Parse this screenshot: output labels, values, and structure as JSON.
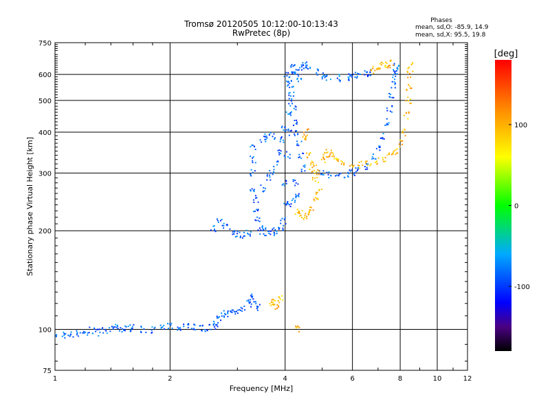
{
  "chart_data": {
    "type": "scatter",
    "title": "Tromsø 20120505 10:12:00-10:13:43",
    "subtitle": "RwPretec (8p)",
    "xlabel": "Frequency [MHz]",
    "ylabel": "Stationary phase Virtual Height [km]",
    "xscale": "log",
    "yscale": "log",
    "xlim": [
      1,
      12
    ],
    "ylim": [
      75,
      750
    ],
    "grid": true,
    "x_ticks": [
      1,
      2,
      4,
      6,
      8,
      10,
      12
    ],
    "y_ticks": [
      75,
      100,
      200,
      300,
      400,
      500,
      600,
      750
    ],
    "stats": {
      "heading": "Phases",
      "line1": "mean, sd,O: -85.9, 14.9",
      "line2": "mean, sd,X:  95.5, 19.8"
    },
    "colorbar": {
      "label": "[deg]",
      "ticks": [
        "100",
        "0",
        "-100"
      ],
      "range": [
        -180,
        180
      ]
    },
    "series": [
      {
        "mode": "O",
        "phase_mean": -85.9,
        "points": [
          [
            1.0,
            95
          ],
          [
            1.05,
            96
          ],
          [
            1.1,
            97
          ],
          [
            1.15,
            97
          ],
          [
            1.2,
            98
          ],
          [
            1.25,
            99
          ],
          [
            1.3,
            98
          ],
          [
            1.35,
            99
          ],
          [
            1.4,
            100
          ],
          [
            1.45,
            101
          ],
          [
            1.5,
            100
          ],
          [
            1.55,
            101
          ],
          [
            1.6,
            101
          ],
          [
            1.7,
            100
          ],
          [
            1.8,
            100
          ],
          [
            1.9,
            101
          ],
          [
            2.0,
            102
          ],
          [
            2.1,
            102
          ],
          [
            2.2,
            103
          ],
          [
            2.3,
            102
          ],
          [
            2.4,
            101
          ],
          [
            2.5,
            101
          ],
          [
            2.6,
            102
          ],
          [
            2.65,
            104
          ],
          [
            2.7,
            107
          ],
          [
            2.75,
            110
          ],
          [
            2.8,
            112
          ],
          [
            2.9,
            113
          ],
          [
            3.0,
            114
          ],
          [
            3.1,
            116
          ],
          [
            3.2,
            120
          ],
          [
            3.25,
            125
          ],
          [
            3.3,
            121
          ],
          [
            3.4,
            117
          ],
          [
            2.6,
            203
          ],
          [
            2.7,
            212
          ],
          [
            2.8,
            206
          ],
          [
            2.9,
            199
          ],
          [
            3.0,
            196
          ],
          [
            3.1,
            195
          ],
          [
            3.2,
            196
          ],
          [
            3.3,
            360
          ],
          [
            3.3,
            330
          ],
          [
            3.3,
            300
          ],
          [
            3.3,
            270
          ],
          [
            3.35,
            250
          ],
          [
            3.35,
            230
          ],
          [
            3.4,
            215
          ],
          [
            3.45,
            205
          ],
          [
            3.5,
            200
          ],
          [
            3.6,
            198
          ],
          [
            3.7,
            198
          ],
          [
            3.8,
            200
          ],
          [
            3.9,
            205
          ],
          [
            3.95,
            215
          ],
          [
            4.0,
            240
          ],
          [
            4.0,
            280
          ],
          [
            4.05,
            340
          ],
          [
            4.1,
            400
          ],
          [
            4.1,
            450
          ],
          [
            4.15,
            500
          ],
          [
            4.15,
            560
          ],
          [
            4.2,
            610
          ],
          [
            4.2,
            640
          ],
          [
            3.5,
            270
          ],
          [
            3.6,
            290
          ],
          [
            3.7,
            300
          ],
          [
            3.8,
            320
          ],
          [
            3.85,
            350
          ],
          [
            3.9,
            380
          ],
          [
            3.95,
            410
          ],
          [
            3.5,
            380
          ],
          [
            3.6,
            390
          ],
          [
            3.7,
            390
          ],
          [
            4.05,
            600
          ],
          [
            4.1,
            560
          ],
          [
            4.15,
            520
          ],
          [
            4.2,
            470
          ],
          [
            4.25,
            430
          ],
          [
            4.3,
            400
          ],
          [
            4.35,
            370
          ],
          [
            4.4,
            340
          ],
          [
            4.45,
            310
          ],
          [
            4.25,
            280
          ],
          [
            4.3,
            260
          ],
          [
            4.2,
            250
          ],
          [
            4.1,
            240
          ],
          [
            4.3,
            610
          ],
          [
            4.35,
            580
          ],
          [
            4.4,
            630
          ],
          [
            4.5,
            640
          ],
          [
            4.6,
            630
          ],
          [
            4.8,
            610
          ],
          [
            5.0,
            595
          ],
          [
            5.2,
            590
          ],
          [
            5.5,
            585
          ],
          [
            5.8,
            590
          ],
          [
            6.0,
            592
          ],
          [
            6.2,
            595
          ],
          [
            6.5,
            605
          ],
          [
            6.7,
            610
          ],
          [
            5.0,
            300
          ],
          [
            5.2,
            295
          ],
          [
            5.5,
            293
          ],
          [
            5.8,
            295
          ],
          [
            6.0,
            300
          ],
          [
            6.2,
            305
          ],
          [
            6.5,
            315
          ],
          [
            6.8,
            335
          ],
          [
            7.0,
            360
          ],
          [
            7.2,
            390
          ],
          [
            7.4,
            430
          ],
          [
            7.5,
            470
          ],
          [
            7.6,
            520
          ],
          [
            7.7,
            560
          ],
          [
            7.75,
            590
          ],
          [
            7.8,
            610
          ],
          [
            7.8,
            640
          ]
        ]
      },
      {
        "mode": "X",
        "phase_mean": 95.5,
        "points": [
          [
            4.3,
            230
          ],
          [
            4.4,
            225
          ],
          [
            4.5,
            222
          ],
          [
            4.6,
            225
          ],
          [
            4.7,
            235
          ],
          [
            4.8,
            250
          ],
          [
            4.9,
            265
          ],
          [
            4.8,
            285
          ],
          [
            4.7,
            310
          ],
          [
            4.6,
            340
          ],
          [
            4.5,
            380
          ],
          [
            4.55,
            400
          ],
          [
            4.75,
            320
          ],
          [
            4.85,
            300
          ],
          [
            5.0,
            330
          ],
          [
            5.1,
            340
          ],
          [
            5.2,
            345
          ],
          [
            5.3,
            340
          ],
          [
            5.5,
            330
          ],
          [
            5.7,
            320
          ],
          [
            6.0,
            315
          ],
          [
            6.3,
            318
          ],
          [
            6.6,
            322
          ],
          [
            7.0,
            327
          ],
          [
            7.3,
            332
          ],
          [
            7.6,
            340
          ],
          [
            7.8,
            350
          ],
          [
            8.0,
            370
          ],
          [
            8.2,
            400
          ],
          [
            8.3,
            450
          ],
          [
            8.4,
            500
          ],
          [
            8.45,
            550
          ],
          [
            8.5,
            600
          ],
          [
            8.5,
            640
          ],
          [
            6.8,
            620
          ],
          [
            7.0,
            625
          ],
          [
            7.2,
            640
          ],
          [
            7.4,
            645
          ],
          [
            7.6,
            650
          ],
          [
            3.7,
            120
          ],
          [
            3.75,
            122
          ],
          [
            3.8,
            118
          ],
          [
            3.9,
            125
          ],
          [
            4.3,
            100
          ]
        ]
      }
    ]
  }
}
